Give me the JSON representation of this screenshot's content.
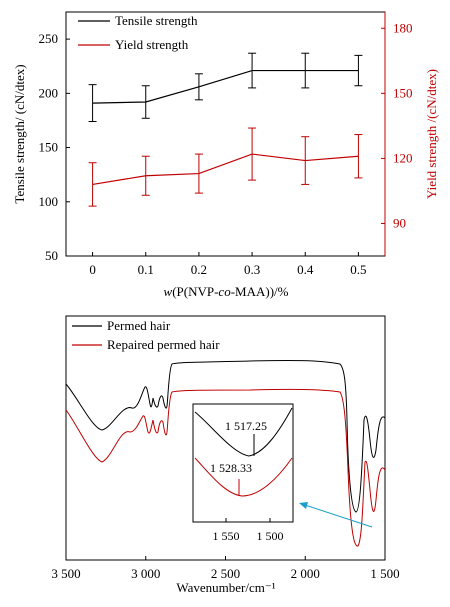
{
  "chart_data": [
    {
      "type": "line",
      "x": [
        0,
        0.1,
        0.2,
        0.3,
        0.4,
        0.5
      ],
      "x_tick_labels": [
        "0",
        "0.1",
        "0.2",
        "0.3",
        "0.4",
        "0.5"
      ],
      "xlabel": "w(P(NVP-co-MAA))/%",
      "xlim": [
        -0.05,
        0.55
      ],
      "ylabel_left": "Tensile strength/ (cN/dtex)",
      "ylabel_right": "Yield strength /(cN/dtex)",
      "ylim_left": [
        50,
        275
      ],
      "ylim_right": [
        75,
        187.5
      ],
      "y_ticks_left": [
        "50",
        "100",
        "150",
        "200",
        "250"
      ],
      "y_ticks_right": [
        "90",
        "120",
        "150",
        "180"
      ],
      "legend_position": "top-left",
      "series": [
        {
          "name": "Tensile strength",
          "axis": "left",
          "color": "#000000",
          "values": [
            191,
            192,
            206,
            221,
            221,
            221
          ],
          "errors": [
            17,
            15,
            12,
            16,
            16,
            14
          ]
        },
        {
          "name": "Yield strength",
          "axis": "right",
          "color": "#c00000",
          "values": [
            108,
            112,
            113,
            122,
            119,
            121
          ],
          "errors": [
            10,
            9,
            9,
            12,
            11,
            10
          ]
        }
      ]
    },
    {
      "type": "line",
      "xlabel": "Wavenumber/cm⁻¹",
      "x_ticks": [
        "3 500",
        "3 000",
        "2 500",
        "2 000",
        "1 500"
      ],
      "xlim": [
        3500,
        1500
      ],
      "x_reversed": true,
      "legend_position": "top-left",
      "series": [
        {
          "name": "Permed hair",
          "color": "#000000"
        },
        {
          "name": "Repaired permed hair",
          "color": "#c00000"
        }
      ],
      "inset": {
        "x_ticks": [
          "1 550",
          "1 500"
        ],
        "annotations": [
          "1 517.25",
          "1 528.33"
        ],
        "arrow_color": "#1aa0c8"
      }
    }
  ]
}
